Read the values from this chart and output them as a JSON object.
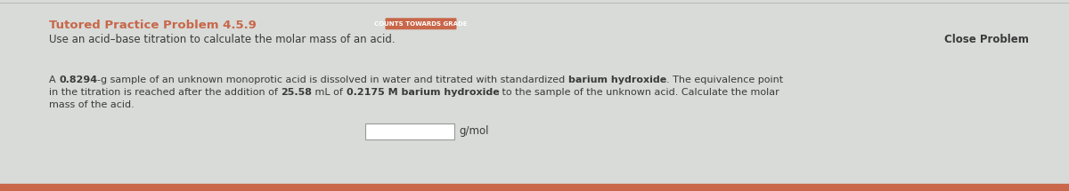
{
  "bg_color": "#d8dbd8",
  "title_text": "Tutored Practice Problem 4.5.9",
  "title_color": "#c8674a",
  "badge_text": "COUNTS TOWARDS GRADE",
  "badge_bg": "#c8674a",
  "badge_text_color": "#ffffff",
  "subtitle_text": "Use an acid–base titration to calculate the molar mass of an acid.",
  "subtitle_color": "#3a3a3a",
  "close_text": "Close Problem",
  "close_color": "#3a3a3a",
  "body_color": "#3a3a3a",
  "unit_text": "g/mol",
  "top_line_color": "#bbbbbb",
  "bottom_stripe_color": "#c8674a",
  "title_fontsize": 9.5,
  "badge_fontsize": 5.0,
  "subtitle_fontsize": 8.5,
  "body_fontsize": 8.0,
  "close_fontsize": 8.5
}
